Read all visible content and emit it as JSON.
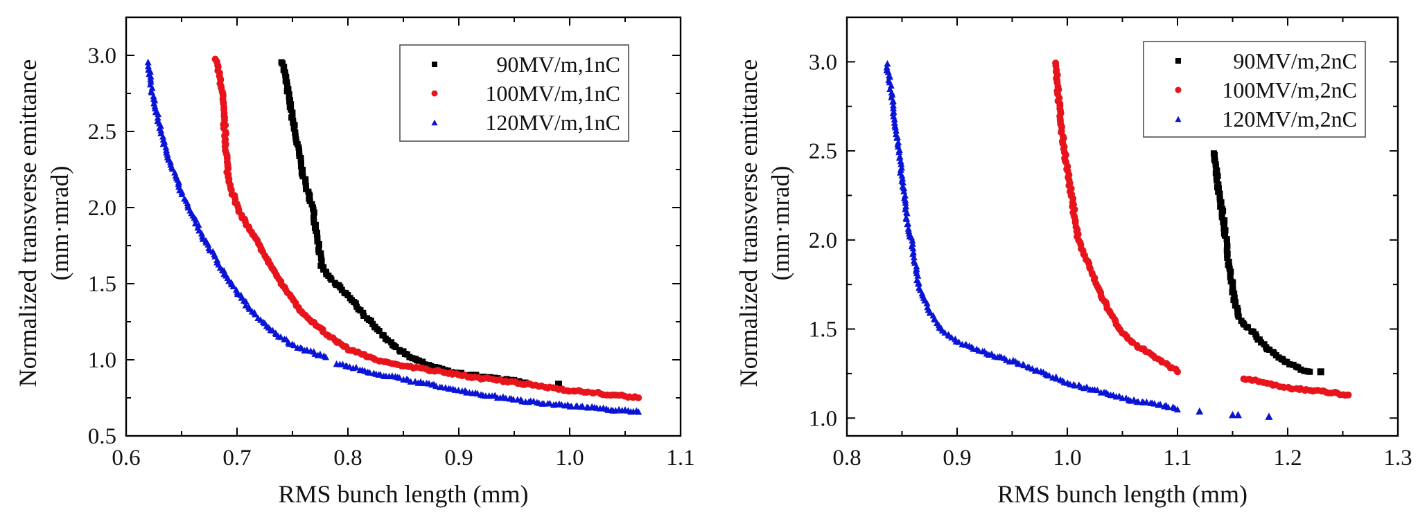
{
  "chart_data": [
    {
      "type": "scatter",
      "title": "",
      "xlabel": "RMS bunch length (mm)",
      "ylabel_line1": "Normalized transverse emittance",
      "ylabel_line2": "(mm·mrad)",
      "xlim": [
        0.6,
        1.1
      ],
      "ylim": [
        0.5,
        3.25
      ],
      "xticks": [
        0.6,
        0.7,
        0.8,
        0.9,
        1.0,
        1.1
      ],
      "xtick_labels": [
        "0.6",
        "0.7",
        "0.8",
        "0.9",
        "1.0",
        "1.1"
      ],
      "yticks": [
        0.5,
        1.0,
        1.5,
        2.0,
        2.5,
        3.0
      ],
      "ytick_labels": [
        "0.5",
        "1.0",
        "1.5",
        "2.0",
        "2.5",
        "3.0"
      ],
      "grid": false,
      "legend_position": "top-right",
      "series": [
        {
          "name": "90MV/m,1nC",
          "color": "#000000",
          "marker": "square",
          "points": [
            [
              0.741,
              2.96
            ],
            [
              0.745,
              2.8
            ],
            [
              0.752,
              2.5
            ],
            [
              0.76,
              2.2
            ],
            [
              0.768,
              2.0
            ],
            [
              0.773,
              1.8
            ],
            [
              0.776,
              1.62
            ],
            [
              0.782,
              1.55
            ],
            [
              0.8,
              1.42
            ],
            [
              0.82,
              1.25
            ],
            [
              0.84,
              1.1
            ],
            [
              0.86,
              1.0
            ],
            [
              0.88,
              0.95
            ],
            [
              0.9,
              0.91
            ],
            [
              0.93,
              0.88
            ],
            [
              0.96,
              0.85
            ]
          ],
          "outliers": [
            [
              0.99,
              0.84
            ]
          ]
        },
        {
          "name": "100MV/m,1nC",
          "color": "#e8141c",
          "marker": "circle",
          "points": [
            [
              0.681,
              2.97
            ],
            [
              0.686,
              2.8
            ],
            [
              0.689,
              2.5
            ],
            [
              0.692,
              2.2
            ],
            [
              0.7,
              2.0
            ],
            [
              0.72,
              1.75
            ],
            [
              0.74,
              1.5
            ],
            [
              0.76,
              1.3
            ],
            [
              0.78,
              1.17
            ],
            [
              0.8,
              1.07
            ],
            [
              0.83,
              0.99
            ],
            [
              0.86,
              0.95
            ],
            [
              0.9,
              0.9
            ],
            [
              0.95,
              0.85
            ],
            [
              1.0,
              0.8
            ],
            [
              1.062,
              0.75
            ]
          ],
          "outliers": []
        },
        {
          "name": "120MV/m,1nC",
          "color": "#0a14d4",
          "marker": "triangle",
          "points": [
            [
              0.62,
              2.95
            ],
            [
              0.625,
              2.7
            ],
            [
              0.635,
              2.4
            ],
            [
              0.65,
              2.1
            ],
            [
              0.67,
              1.8
            ],
            [
              0.69,
              1.55
            ],
            [
              0.71,
              1.35
            ],
            [
              0.73,
              1.2
            ],
            [
              0.75,
              1.1
            ],
            [
              0.78,
              1.02
            ]
          ],
          "points_b": [
            [
              0.79,
              0.98
            ],
            [
              0.82,
              0.92
            ],
            [
              0.86,
              0.86
            ],
            [
              0.9,
              0.8
            ],
            [
              0.95,
              0.74
            ],
            [
              1.0,
              0.7
            ],
            [
              1.062,
              0.66
            ]
          ],
          "outliers": []
        }
      ]
    },
    {
      "type": "scatter",
      "title": "",
      "xlabel": "RMS bunch length (mm)",
      "ylabel_line1": "Normalized transverse emittance",
      "ylabel_line2": "(mm·mrad)",
      "xlim": [
        0.8,
        1.3
      ],
      "ylim": [
        0.9,
        3.25
      ],
      "xticks": [
        0.8,
        0.9,
        1.0,
        1.1,
        1.2,
        1.3
      ],
      "xtick_labels": [
        "0.8",
        "0.9",
        "1.0",
        "1.1",
        "1.2",
        "1.3"
      ],
      "yticks": [
        1.0,
        1.5,
        2.0,
        2.5,
        3.0
      ],
      "ytick_labels": [
        "1.0",
        "1.5",
        "2.0",
        "2.5",
        "3.0"
      ],
      "grid": false,
      "legend_position": "top-right",
      "series": [
        {
          "name": "90MV/m,2nC",
          "color": "#000000",
          "marker": "square",
          "points": [
            [
              1.133,
              2.49
            ],
            [
              1.137,
              2.3
            ],
            [
              1.142,
              2.1
            ],
            [
              1.147,
              1.85
            ],
            [
              1.152,
              1.65
            ],
            [
              1.157,
              1.55
            ],
            [
              1.17,
              1.47
            ],
            [
              1.18,
              1.4
            ],
            [
              1.19,
              1.35
            ],
            [
              1.2,
              1.31
            ],
            [
              1.21,
              1.28
            ],
            [
              1.22,
              1.26
            ]
          ],
          "outliers": [
            [
              1.23,
              1.26
            ]
          ]
        },
        {
          "name": "100MV/m,2nC",
          "color": "#e8141c",
          "marker": "circle",
          "points": [
            [
              0.99,
              2.99
            ],
            [
              0.992,
              2.8
            ],
            [
              0.995,
              2.6
            ],
            [
              1.0,
              2.4
            ],
            [
              1.005,
              2.2
            ],
            [
              1.01,
              2.0
            ],
            [
              1.02,
              1.85
            ],
            [
              1.03,
              1.7
            ],
            [
              1.04,
              1.58
            ],
            [
              1.05,
              1.48
            ],
            [
              1.06,
              1.42
            ],
            [
              1.08,
              1.34
            ],
            [
              1.1,
              1.26
            ]
          ],
          "points_b": [
            [
              1.16,
              1.22
            ],
            [
              1.18,
              1.2
            ],
            [
              1.2,
              1.17
            ],
            [
              1.23,
              1.15
            ],
            [
              1.255,
              1.13
            ]
          ],
          "outliers": []
        },
        {
          "name": "120MV/m,2nC",
          "color": "#0a14d4",
          "marker": "triangle",
          "points": [
            [
              0.836,
              2.99
            ],
            [
              0.84,
              2.85
            ],
            [
              0.845,
              2.6
            ],
            [
              0.85,
              2.35
            ],
            [
              0.855,
              2.1
            ],
            [
              0.86,
              1.95
            ],
            [
              0.865,
              1.75
            ],
            [
              0.875,
              1.6
            ],
            [
              0.885,
              1.5
            ],
            [
              0.9,
              1.43
            ],
            [
              0.92,
              1.38
            ],
            [
              0.95,
              1.32
            ],
            [
              0.98,
              1.25
            ],
            [
              1.0,
              1.2
            ],
            [
              1.03,
              1.15
            ],
            [
              1.06,
              1.1
            ],
            [
              1.09,
              1.07
            ],
            [
              1.1,
              1.05
            ]
          ],
          "outliers": [
            [
              1.12,
              1.04
            ],
            [
              1.15,
              1.02
            ],
            [
              1.155,
              1.02
            ],
            [
              1.183,
              1.01
            ]
          ]
        }
      ]
    }
  ]
}
